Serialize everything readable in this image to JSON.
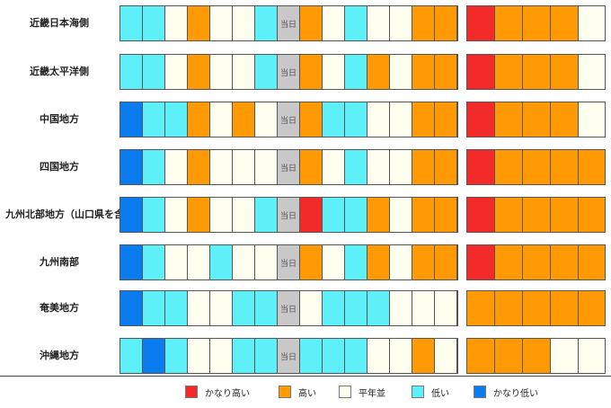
{
  "colors": {
    "R": "#f22a2a",
    "O": "#ff9a05",
    "W": "#fffff0",
    "C": "#5ef0f8",
    "B": "#0a7cf0"
  },
  "today_label": "当日",
  "regions": [
    {
      "label": "近畿日本海側",
      "cells": [
        "C",
        "C",
        "W",
        "O",
        "W",
        "W",
        "C",
        "T",
        "O",
        "W",
        "C",
        "W",
        "W",
        "O",
        "O"
      ],
      "week": [
        "R",
        "O",
        "O",
        "O",
        "W"
      ]
    },
    {
      "label": "近畿太平洋側",
      "cells": [
        "C",
        "C",
        "W",
        "O",
        "W",
        "W",
        "C",
        "T",
        "O",
        "W",
        "C",
        "O",
        "W",
        "O",
        "O"
      ],
      "week": [
        "R",
        "O",
        "O",
        "O",
        "W"
      ]
    },
    {
      "label": "中国地方",
      "cells": [
        "B",
        "C",
        "C",
        "O",
        "W",
        "O",
        "W",
        "T",
        "O",
        "C",
        "C",
        "W",
        "W",
        "O",
        "O"
      ],
      "week": [
        "R",
        "O",
        "O",
        "O",
        "W"
      ]
    },
    {
      "label": "四国地方",
      "cells": [
        "B",
        "C",
        "W",
        "O",
        "W",
        "W",
        "W",
        "T",
        "O",
        "W",
        "C",
        "W",
        "W",
        "O",
        "O"
      ],
      "week": [
        "R",
        "O",
        "O",
        "O",
        "O"
      ]
    },
    {
      "label": "九州北部地方（山口県を含む）",
      "cells": [
        "B",
        "C",
        "W",
        "O",
        "W",
        "W",
        "C",
        "T",
        "R",
        "C",
        "C",
        "O",
        "W",
        "O",
        "O"
      ],
      "week": [
        "R",
        "O",
        "O",
        "O",
        "O"
      ]
    },
    {
      "label": "九州南部",
      "cells": [
        "B",
        "C",
        "W",
        "W",
        "C",
        "W",
        "W",
        "T",
        "O",
        "W",
        "C",
        "O",
        "W",
        "O",
        "O"
      ],
      "week": [
        "R",
        "O",
        "O",
        "O",
        "O"
      ]
    },
    {
      "label": "奄美地方",
      "cells": [
        "B",
        "C",
        "C",
        "W",
        "W",
        "C",
        "C",
        "T",
        "W",
        "C",
        "C",
        "C",
        "W",
        "W",
        "W"
      ],
      "week": [
        "O",
        "O",
        "O",
        "O",
        "O"
      ]
    },
    {
      "label": "沖縄地方",
      "cells": [
        "C",
        "B",
        "C",
        "W",
        "W",
        "C",
        "C",
        "T",
        "C",
        "C",
        "C",
        "W",
        "W",
        "O",
        "W"
      ],
      "week": [
        "O",
        "O",
        "O",
        "W",
        "W"
      ]
    }
  ],
  "legend": [
    {
      "color": "R",
      "label": "かなり高い"
    },
    {
      "color": "O",
      "label": "高い"
    },
    {
      "color": "W",
      "label": "平年並"
    },
    {
      "color": "C",
      "label": "低い"
    },
    {
      "color": "B",
      "label": "かなり低い"
    }
  ]
}
